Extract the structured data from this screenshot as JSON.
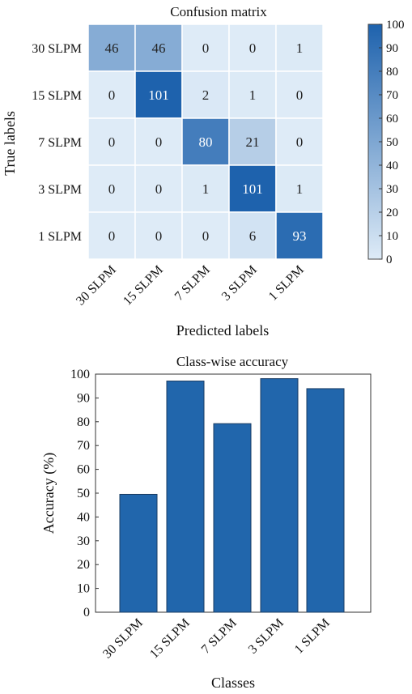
{
  "chart_data": [
    {
      "type": "heatmap",
      "title": "Confusion matrix",
      "xlabel": "Predicted labels",
      "ylabel": "True labels",
      "x_categories": [
        "30 SLPM",
        "15 SLPM",
        "7 SLPM",
        "3 SLPM",
        "1 SLPM"
      ],
      "y_categories": [
        "30 SLPM",
        "15 SLPM",
        "7 SLPM",
        "3 SLPM",
        "1 SLPM"
      ],
      "values": [
        [
          46,
          46,
          0,
          0,
          1
        ],
        [
          0,
          101,
          2,
          1,
          0
        ],
        [
          0,
          0,
          80,
          21,
          0
        ],
        [
          0,
          0,
          1,
          101,
          1
        ],
        [
          0,
          0,
          0,
          6,
          93
        ]
      ],
      "colorbar": {
        "min": 0,
        "max": 100,
        "ticks": [
          "0",
          "10",
          "20",
          "30",
          "40",
          "50",
          "60",
          "70",
          "80",
          "90",
          "100"
        ],
        "low_color": "#deebf7",
        "high_color": "#1e62ad"
      }
    },
    {
      "type": "bar",
      "title": "Class-wise accuracy",
      "xlabel": "Classes",
      "ylabel": "Accuracy (%)",
      "categories": [
        "30 SLPM",
        "15 SLPM",
        "7 SLPM",
        "3 SLPM",
        "1 SLPM"
      ],
      "values": [
        49.5,
        97.1,
        79.2,
        98.1,
        93.9
      ],
      "ylim": [
        0,
        100
      ],
      "yticks": [
        "0",
        "10",
        "20",
        "30",
        "40",
        "50",
        "60",
        "70",
        "80",
        "90",
        "100"
      ],
      "bar_color": "#2166ac",
      "grid": false
    }
  ]
}
